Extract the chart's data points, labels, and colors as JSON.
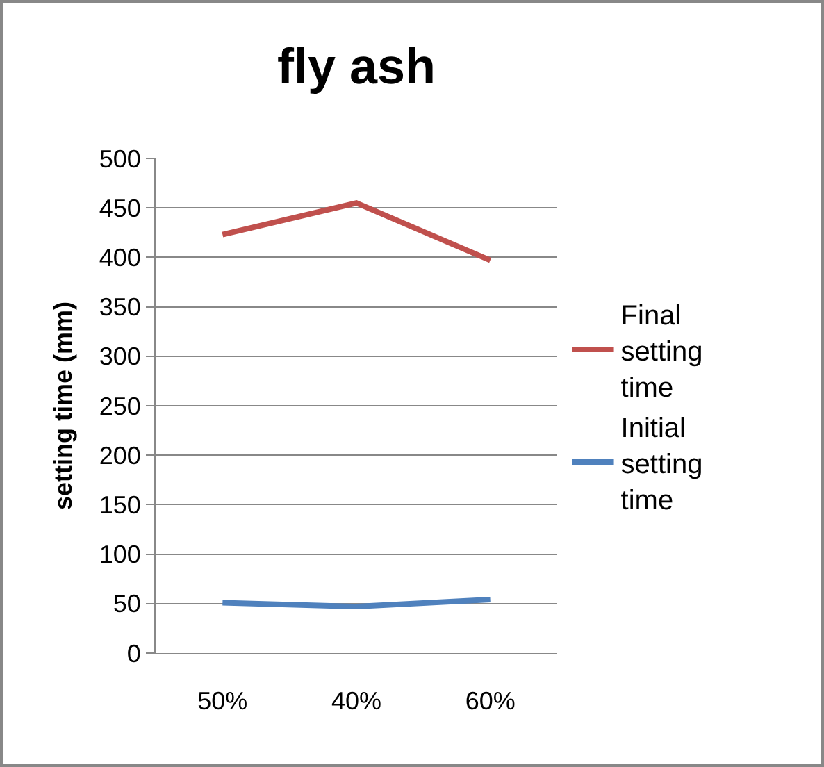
{
  "chart_data": {
    "type": "line",
    "title": "fly ash",
    "ylabel": "setting time (mm)",
    "categories": [
      "50%",
      "40%",
      "60%"
    ],
    "series": [
      {
        "name": "Final setting time",
        "color": "#c0504d",
        "values": [
          423,
          455,
          397
        ]
      },
      {
        "name": "Initial setting time",
        "color": "#4f81bd",
        "values": [
          51,
          47,
          54
        ]
      }
    ],
    "ylim": [
      0,
      500
    ],
    "yticks": [
      0,
      50,
      100,
      150,
      200,
      250,
      300,
      350,
      400,
      450,
      500
    ],
    "grid": "y",
    "legend": "right",
    "marker": "none",
    "line_style": "solid"
  }
}
